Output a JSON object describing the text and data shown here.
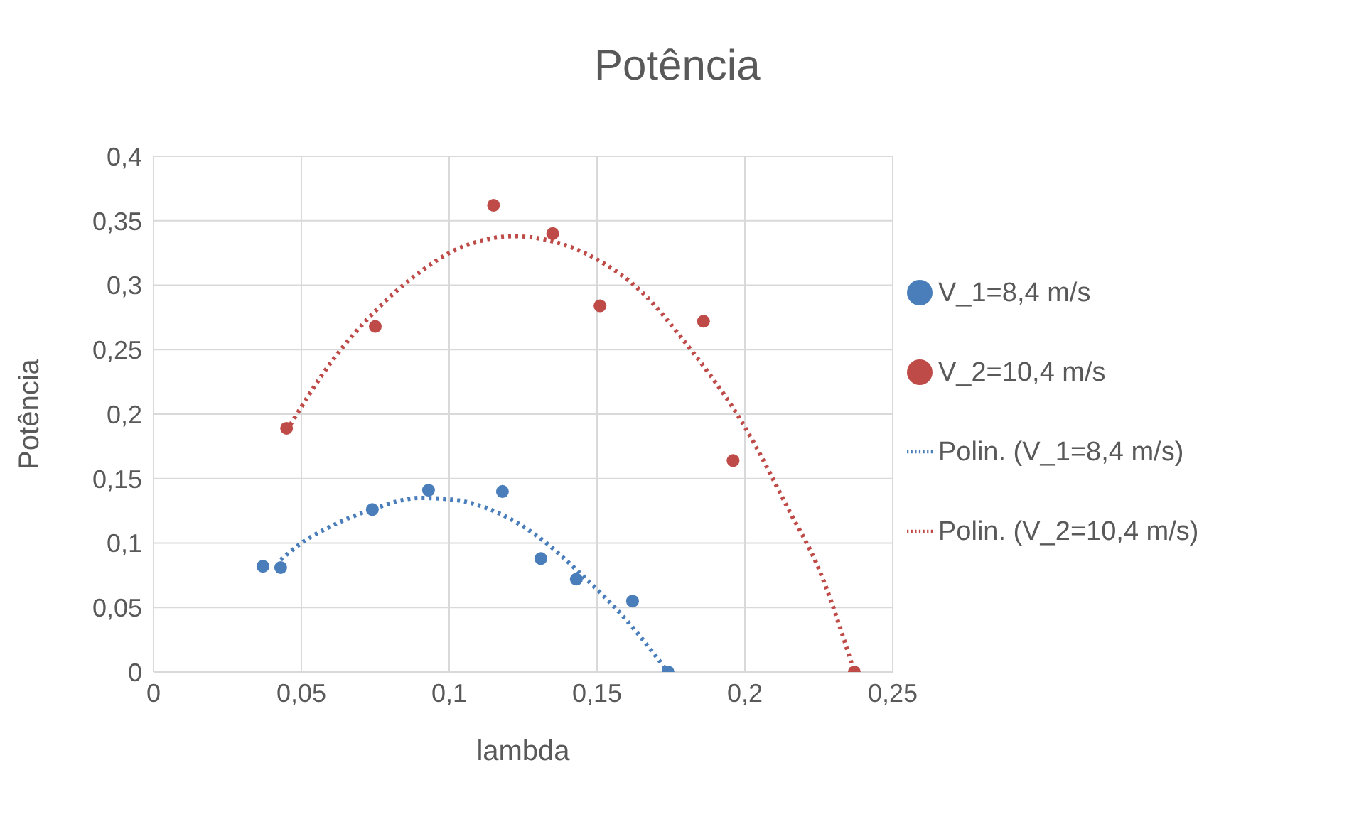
{
  "chart_data": {
    "type": "scatter",
    "title": "Potência",
    "xlabel": "lambda",
    "ylabel": "Potência",
    "xlim": [
      0,
      0.25
    ],
    "xticks": [
      0,
      {
        "value": 0.05,
        "label": "0,05"
      },
      {
        "value": 0.1,
        "label": "0,1"
      },
      {
        "value": 0.15,
        "label": "0,15"
      },
      {
        "value": 0.2,
        "label": "0,2"
      },
      {
        "value": 0.25,
        "label": "0,25"
      }
    ],
    "ylim": [
      0,
      0.4
    ],
    "yticks": [
      0,
      {
        "value": 0.05,
        "label": "0,05"
      },
      {
        "value": 0.1,
        "label": "0,1"
      },
      {
        "value": 0.15,
        "label": "0,15"
      },
      {
        "value": 0.2,
        "label": "0,2"
      },
      {
        "value": 0.25,
        "label": "0,25"
      },
      {
        "value": 0.3,
        "label": "0,3"
      },
      {
        "value": 0.35,
        "label": "0,35"
      },
      {
        "value": 0.4,
        "label": "0,4"
      }
    ],
    "grid": true,
    "legend": "right",
    "marker": "circle",
    "series": [
      {
        "name": "V_1=8,4 m/s",
        "color": "#4a7ebb",
        "x": [
          0.037,
          0.043,
          0.074,
          0.093,
          0.118,
          0.131,
          0.143,
          0.162,
          0.174
        ],
        "values": [
          0.082,
          0.081,
          0.126,
          0.141,
          0.14,
          0.088,
          0.072,
          0.055,
          0
        ]
      },
      {
        "name": "V_2=10,4 m/s",
        "color": "#be4b48",
        "x": [
          0.045,
          0.075,
          0.115,
          0.135,
          0.151,
          0.186,
          0.196,
          0.237
        ],
        "values": [
          0.189,
          0.268,
          0.362,
          0.34,
          0.284,
          0.272,
          0.164,
          0
        ]
      },
      {
        "name": "Polin. (V_1=8,4 m/s)",
        "type": "line",
        "line_style": "dotted",
        "marker": "none",
        "color": "#4a7ebb",
        "x": [
          0.043,
          0.05,
          0.06,
          0.075,
          0.09,
          0.1,
          0.115,
          0.13,
          0.145,
          0.16,
          0.174
        ],
        "values": [
          0.087,
          0.1,
          0.113,
          0.127,
          0.135,
          0.134,
          0.125,
          0.105,
          0.075,
          0.04,
          0
        ]
      },
      {
        "name": "Polin. (V_2=10,4 m/s)",
        "type": "line",
        "line_style": "dotted",
        "marker": "none",
        "color": "#be4b48",
        "x": [
          0.045,
          0.06,
          0.075,
          0.09,
          0.1,
          0.11,
          0.122,
          0.135,
          0.15,
          0.165,
          0.18,
          0.2,
          0.215,
          0.225,
          0.237
        ],
        "values": [
          0.187,
          0.24,
          0.28,
          0.31,
          0.325,
          0.334,
          0.338,
          0.334,
          0.32,
          0.295,
          0.255,
          0.19,
          0.125,
          0.08,
          0
        ]
      }
    ]
  }
}
